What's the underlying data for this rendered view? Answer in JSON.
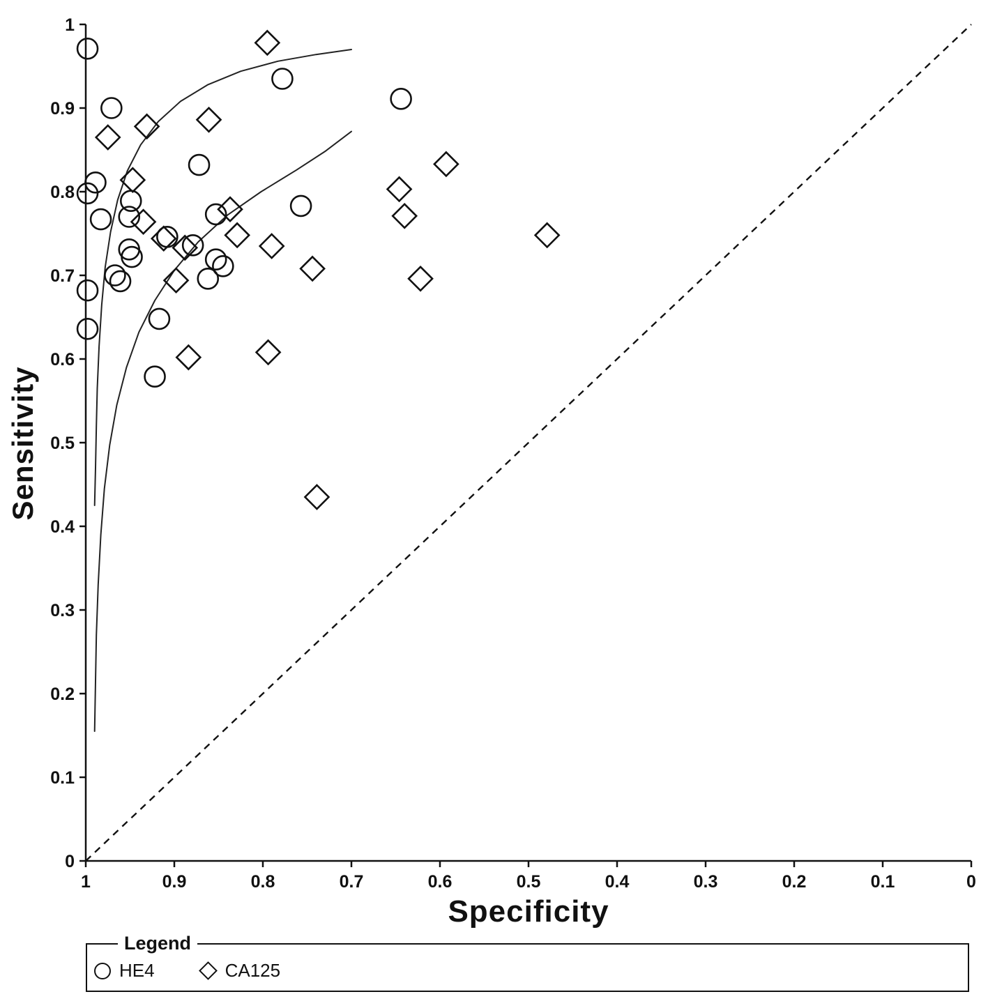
{
  "chart_data": {
    "type": "scatter",
    "title": "",
    "xlabel": "Specificity",
    "ylabel": "Sensitivity",
    "x_axis": {
      "label": "Specificity",
      "min": 1,
      "max": 0,
      "reversed": true,
      "ticks": [
        1,
        0.9,
        0.8,
        0.7,
        0.6,
        0.5,
        0.4,
        0.3,
        0.2,
        0.1,
        0
      ]
    },
    "y_axis": {
      "label": "Sensitivity",
      "min": 0,
      "max": 1,
      "ticks": [
        0,
        0.1,
        0.2,
        0.3,
        0.4,
        0.5,
        0.6,
        0.7,
        0.8,
        0.9,
        1
      ]
    },
    "grid": false,
    "series": [
      {
        "name": "HE4",
        "marker": "circle",
        "points": [
          [
            0.998,
            0.971
          ],
          [
            0.971,
            0.9
          ],
          [
            0.778,
            0.935
          ],
          [
            0.644,
            0.911
          ],
          [
            0.872,
            0.832
          ],
          [
            0.989,
            0.811
          ],
          [
            0.998,
            0.798
          ],
          [
            0.949,
            0.789
          ],
          [
            0.757,
            0.783
          ],
          [
            0.983,
            0.767
          ],
          [
            0.951,
            0.77
          ],
          [
            0.853,
            0.773
          ],
          [
            0.908,
            0.746
          ],
          [
            0.879,
            0.736
          ],
          [
            0.951,
            0.731
          ],
          [
            0.948,
            0.722
          ],
          [
            0.853,
            0.719
          ],
          [
            0.845,
            0.711
          ],
          [
            0.862,
            0.696
          ],
          [
            0.967,
            0.7
          ],
          [
            0.961,
            0.693
          ],
          [
            0.998,
            0.682
          ],
          [
            0.917,
            0.648
          ],
          [
            0.998,
            0.636
          ],
          [
            0.922,
            0.579
          ]
        ]
      },
      {
        "name": "CA125",
        "marker": "diamond",
        "points": [
          [
            0.795,
            0.978
          ],
          [
            0.861,
            0.886
          ],
          [
            0.931,
            0.878
          ],
          [
            0.975,
            0.865
          ],
          [
            0.593,
            0.833
          ],
          [
            0.947,
            0.814
          ],
          [
            0.646,
            0.803
          ],
          [
            0.64,
            0.771
          ],
          [
            0.837,
            0.779
          ],
          [
            0.935,
            0.764
          ],
          [
            0.829,
            0.748
          ],
          [
            0.479,
            0.748
          ],
          [
            0.912,
            0.744
          ],
          [
            0.888,
            0.733
          ],
          [
            0.79,
            0.735
          ],
          [
            0.744,
            0.708
          ],
          [
            0.898,
            0.694
          ],
          [
            0.622,
            0.696
          ],
          [
            0.884,
            0.602
          ],
          [
            0.794,
            0.608
          ],
          [
            0.739,
            0.435
          ]
        ]
      }
    ],
    "curves": [
      {
        "name": "HE4 summary ROC curve",
        "points": [
          [
            0.99,
            0.425
          ],
          [
            0.989,
            0.47
          ],
          [
            0.988,
            0.52
          ],
          [
            0.987,
            0.565
          ],
          [
            0.985,
            0.615
          ],
          [
            0.982,
            0.665
          ],
          [
            0.978,
            0.71
          ],
          [
            0.972,
            0.752
          ],
          [
            0.964,
            0.79
          ],
          [
            0.953,
            0.825
          ],
          [
            0.938,
            0.856
          ],
          [
            0.918,
            0.884
          ],
          [
            0.893,
            0.908
          ],
          [
            0.862,
            0.928
          ],
          [
            0.825,
            0.944
          ],
          [
            0.783,
            0.956
          ],
          [
            0.74,
            0.964
          ],
          [
            0.7,
            0.97
          ]
        ]
      },
      {
        "name": "CA125 summary ROC curve",
        "points": [
          [
            0.99,
            0.155
          ],
          [
            0.989,
            0.215
          ],
          [
            0.988,
            0.27
          ],
          [
            0.986,
            0.33
          ],
          [
            0.983,
            0.39
          ],
          [
            0.979,
            0.445
          ],
          [
            0.973,
            0.497
          ],
          [
            0.965,
            0.545
          ],
          [
            0.954,
            0.59
          ],
          [
            0.94,
            0.632
          ],
          [
            0.922,
            0.67
          ],
          [
            0.9,
            0.706
          ],
          [
            0.873,
            0.74
          ],
          [
            0.84,
            0.772
          ],
          [
            0.802,
            0.8
          ],
          [
            0.762,
            0.826
          ],
          [
            0.73,
            0.848
          ],
          [
            0.7,
            0.872
          ]
        ]
      }
    ],
    "diagonal": {
      "style": "dashed",
      "from": [
        1,
        0
      ],
      "to": [
        0,
        1
      ]
    }
  },
  "legend": {
    "title": "Legend",
    "items": [
      {
        "label": "HE4",
        "marker": "circle"
      },
      {
        "label": "CA125",
        "marker": "diamond"
      }
    ]
  },
  "colors": {
    "axis": "#111111",
    "marker": "#111111",
    "curve": "#222222",
    "diagonal": "#111111",
    "background": "#ffffff"
  }
}
